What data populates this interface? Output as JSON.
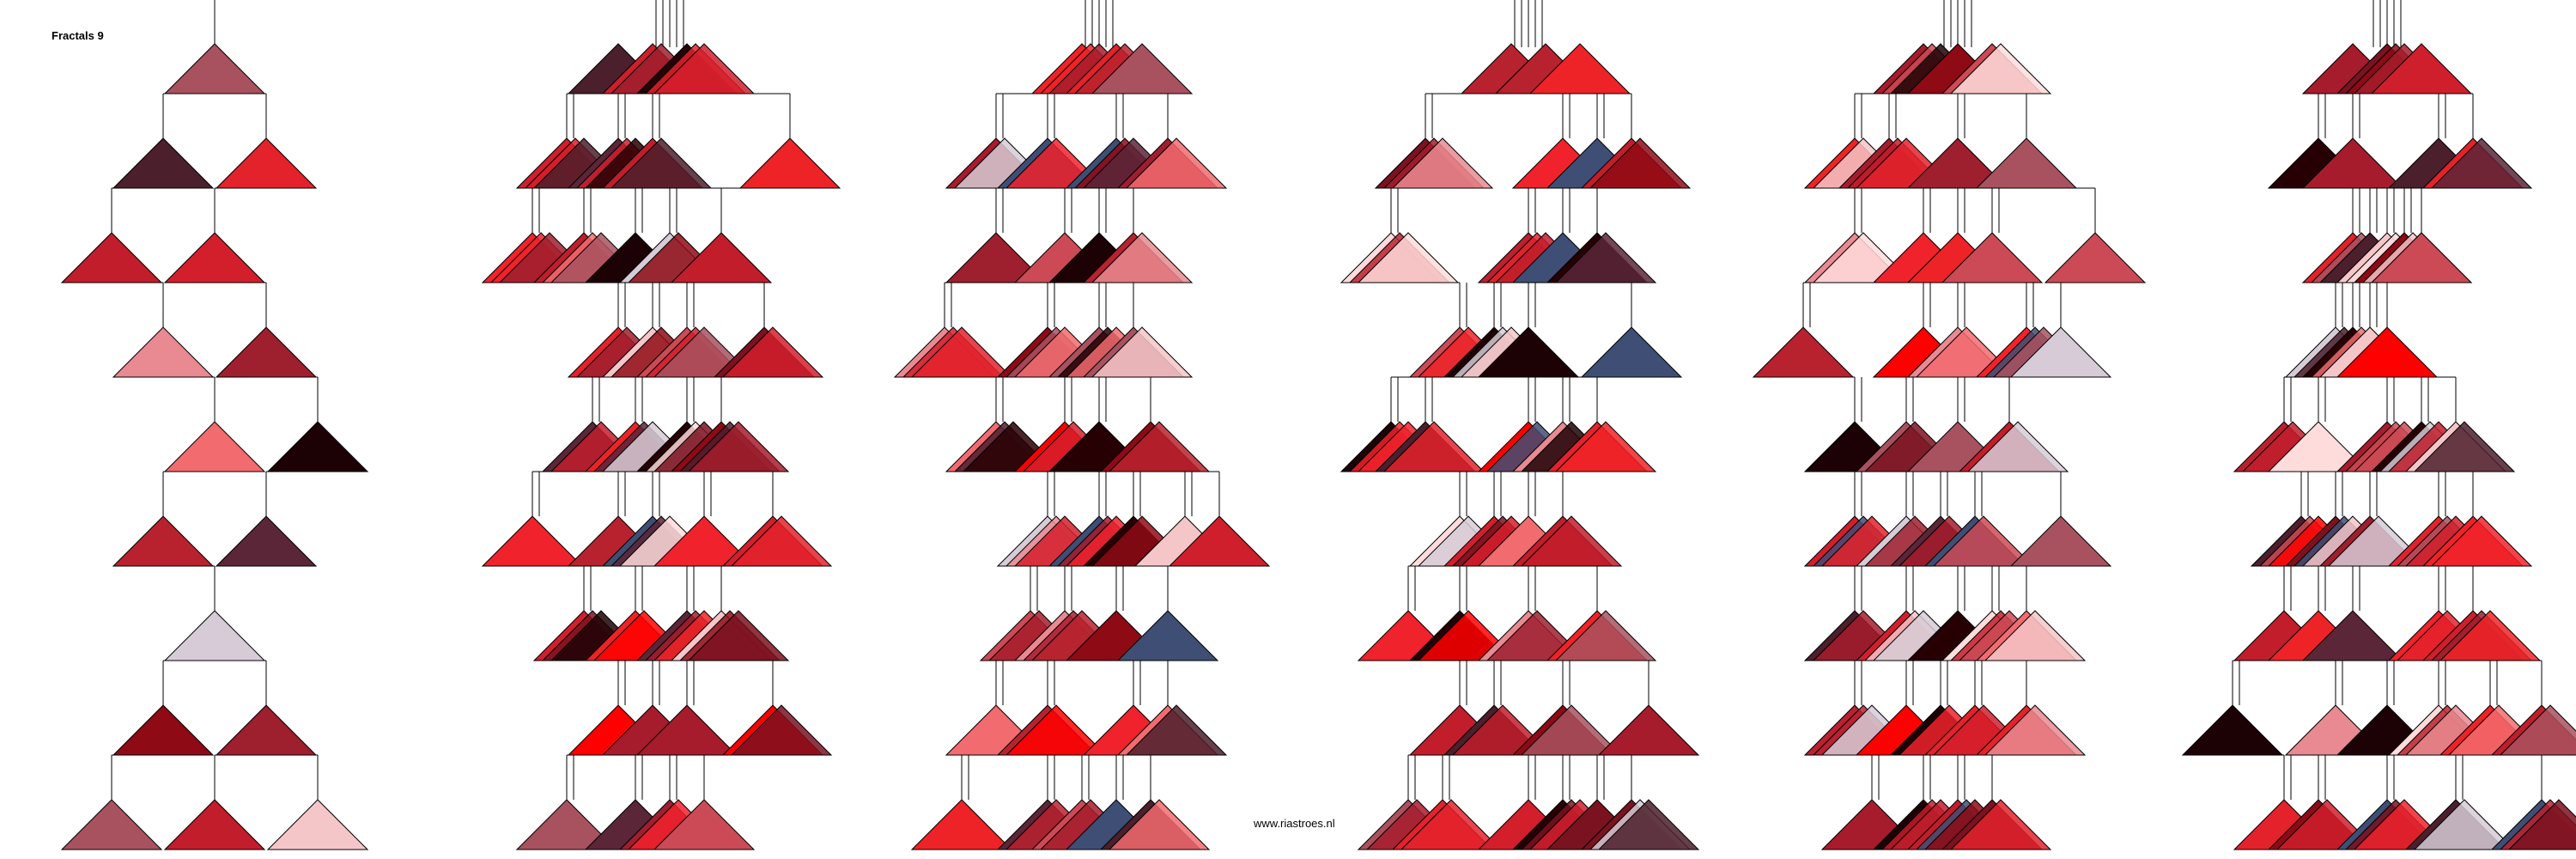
{
  "title": "Fractals 9",
  "credit": "www.riastroes.nl",
  "colors": {
    "background": "#ffffff",
    "stroke": "#000000",
    "palette": [
      "#a61c2c",
      "#9e1f2e",
      "#e3222b",
      "#ee2327",
      "#cf1f2c",
      "#c11d2b",
      "#5a2638",
      "#cb4a55",
      "#f0222b",
      "#b8222e",
      "#d31f2b",
      "#a8525f",
      "#e98991",
      "#4b1f2c",
      "#1d0205",
      "#8e0a15",
      "#f5c6c8",
      "#3f4e74",
      "#d6cbd6",
      "#ff0000",
      "#7a1220",
      "#f26b6f",
      "#ffdcdc",
      "#270003"
    ]
  },
  "panels": [
    {
      "name": "panel-1",
      "levels": 9
    },
    {
      "name": "panel-2",
      "levels": 9
    },
    {
      "name": "panel-3",
      "levels": 9
    },
    {
      "name": "panel-4",
      "levels": 9
    },
    {
      "name": "panel-5",
      "levels": 9
    },
    {
      "name": "panel-6",
      "levels": 9
    }
  ]
}
